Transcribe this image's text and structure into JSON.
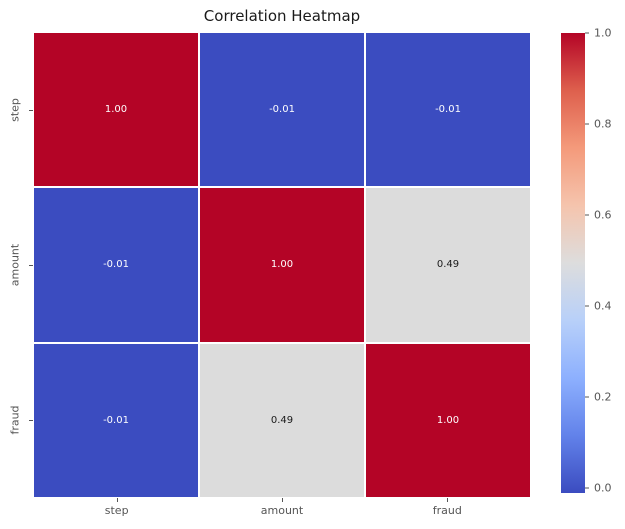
{
  "chart_data": {
    "type": "heatmap",
    "title": "Correlation Heatmap",
    "categories": [
      "step",
      "amount",
      "fraud"
    ],
    "matrix": [
      [
        1.0,
        -0.01,
        -0.01
      ],
      [
        -0.01,
        1.0,
        0.49
      ],
      [
        -0.01,
        0.49,
        1.0
      ]
    ],
    "cell_labels": [
      [
        "1.00",
        "-0.01",
        "-0.01"
      ],
      [
        "-0.01",
        "1.00",
        "0.49"
      ],
      [
        "-0.01",
        "0.49",
        "1.00"
      ]
    ],
    "cell_colors": [
      [
        "#b40426",
        "#3b4cc0",
        "#3b4cc0"
      ],
      [
        "#3b4cc0",
        "#b40426",
        "#dcdcdc"
      ],
      [
        "#3b4cc0",
        "#dcdcdc",
        "#b40426"
      ]
    ],
    "cell_text_colors": [
      [
        "#ffffff",
        "#ffffff",
        "#ffffff"
      ],
      [
        "#ffffff",
        "#ffffff",
        "#1a1a1a"
      ],
      [
        "#ffffff",
        "#1a1a1a",
        "#ffffff"
      ]
    ],
    "colormap": "coolwarm",
    "vmin": -0.01,
    "vmax": 1.0,
    "gridline_color": "#ffffff",
    "legend_position": "right",
    "colorbar": {
      "tick_values": [
        1.0,
        0.8,
        0.6,
        0.4,
        0.2,
        0.0
      ],
      "tick_labels": [
        "1.0",
        "0.8",
        "0.6",
        "0.4",
        "0.2",
        "0.0"
      ],
      "gradient_stops": [
        {
          "t": 0.0,
          "color": "#3b4cc0"
        },
        {
          "t": 0.125,
          "color": "#6282ea"
        },
        {
          "t": 0.25,
          "color": "#8db0fe"
        },
        {
          "t": 0.375,
          "color": "#b8d0f9"
        },
        {
          "t": 0.5,
          "color": "#dddddd"
        },
        {
          "t": 0.625,
          "color": "#f5c4ad"
        },
        {
          "t": 0.75,
          "color": "#f49a7b"
        },
        {
          "t": 0.875,
          "color": "#de604d"
        },
        {
          "t": 1.0,
          "color": "#b40426"
        }
      ]
    }
  }
}
